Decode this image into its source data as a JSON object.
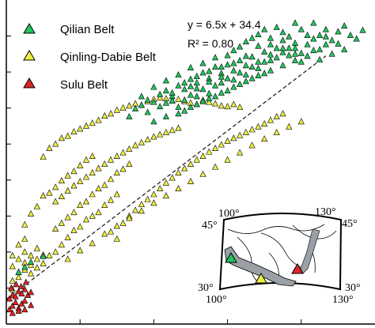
{
  "chart_data": {
    "type": "scatter",
    "title": "",
    "xlabel": "",
    "ylabel": "",
    "xlim": [
      0,
      60
    ],
    "ylim": [
      0,
      450
    ],
    "grid": false,
    "legend_position": "top-left",
    "equation": "y = 6.5x + 34.4",
    "r_squared": "R² = 0.80",
    "fit": {
      "slope": 6.5,
      "intercept": 34.4
    },
    "series": [
      {
        "name": "Qilian Belt",
        "color": "#22c55e",
        "points": [
          [
            2,
            72
          ],
          [
            4,
            86
          ],
          [
            6,
            94
          ],
          [
            3,
            79
          ],
          [
            20,
            288
          ],
          [
            21,
            299
          ],
          [
            22,
            304
          ],
          [
            23,
            311
          ],
          [
            22,
            316
          ],
          [
            24,
            308
          ],
          [
            25,
            319
          ],
          [
            26,
            324
          ],
          [
            24,
            329
          ],
          [
            27,
            316
          ],
          [
            28,
            331
          ],
          [
            26,
            338
          ],
          [
            29,
            326
          ],
          [
            30,
            340
          ],
          [
            28,
            346
          ],
          [
            31,
            335
          ],
          [
            27,
            321
          ],
          [
            32,
            349
          ],
          [
            30,
            356
          ],
          [
            33,
            341
          ],
          [
            29,
            311
          ],
          [
            31,
            327
          ],
          [
            34,
            357
          ],
          [
            32,
            362
          ],
          [
            35,
            348
          ],
          [
            33,
            336
          ],
          [
            36,
            360
          ],
          [
            34,
            370
          ],
          [
            37,
            352
          ],
          [
            35,
            343
          ],
          [
            38,
            366
          ],
          [
            36,
            373
          ],
          [
            39,
            359
          ],
          [
            37,
            380
          ],
          [
            40,
            371
          ],
          [
            38,
            385
          ],
          [
            41,
            364
          ],
          [
            39,
            392
          ],
          [
            42,
            378
          ],
          [
            40,
            397
          ],
          [
            43,
            388
          ],
          [
            41,
            402
          ],
          [
            44,
            383
          ],
          [
            42,
            409
          ],
          [
            45,
            394
          ],
          [
            43,
            374
          ],
          [
            46,
            399
          ],
          [
            44,
            412
          ],
          [
            47,
            390
          ],
          [
            45,
            405
          ],
          [
            48,
            409
          ],
          [
            46,
            383
          ],
          [
            49,
            401
          ],
          [
            47,
            418
          ],
          [
            50,
            396
          ],
          [
            48,
            376
          ],
          [
            51,
            401
          ],
          [
            49,
            388
          ],
          [
            52,
            409
          ],
          [
            50,
            418
          ],
          [
            53,
            394
          ],
          [
            51,
            381
          ],
          [
            54,
            406
          ],
          [
            52,
            399
          ],
          [
            55,
            414
          ],
          [
            56,
            401
          ],
          [
            54,
            389
          ],
          [
            57,
            396
          ],
          [
            58,
            408
          ],
          [
            53,
            375
          ],
          [
            55,
            381
          ],
          [
            26,
            307
          ],
          [
            28,
            301
          ],
          [
            30,
            318
          ],
          [
            32,
            326
          ],
          [
            34,
            331
          ],
          [
            36,
            341
          ],
          [
            38,
            349
          ],
          [
            40,
            357
          ],
          [
            42,
            364
          ],
          [
            44,
            370
          ],
          [
            46,
            373
          ],
          [
            48,
            364
          ],
          [
            50,
            380
          ],
          [
            52,
            388
          ],
          [
            23,
            294
          ],
          [
            25,
            302
          ],
          [
            27,
            310
          ],
          [
            29,
            296
          ],
          [
            31,
            305
          ],
          [
            33,
            313
          ],
          [
            35,
            321
          ],
          [
            37,
            329
          ],
          [
            39,
            337
          ],
          [
            41,
            345
          ],
          [
            43,
            352
          ],
          [
            45,
            359
          ],
          [
            47,
            366
          ],
          [
            49,
            372
          ],
          [
            51,
            367
          ],
          [
            24,
            281
          ],
          [
            26,
            288
          ],
          [
            28,
            292
          ],
          [
            30,
            301
          ],
          [
            32,
            309
          ],
          [
            34,
            316
          ],
          [
            36,
            324
          ],
          [
            38,
            333
          ],
          [
            40,
            341
          ],
          [
            42,
            348
          ],
          [
            30,
            330
          ],
          [
            31,
            344
          ],
          [
            33,
            320
          ],
          [
            35,
            335
          ],
          [
            37,
            362
          ],
          [
            39,
            346
          ],
          [
            41,
            355
          ],
          [
            43,
            366
          ],
          [
            45,
            377
          ],
          [
            47,
            383
          ],
          [
            29,
            335
          ],
          [
            31,
            316
          ],
          [
            33,
            351
          ],
          [
            35,
            357
          ],
          [
            37,
            339
          ],
          [
            39,
            372
          ],
          [
            41,
            386
          ],
          [
            43,
            397
          ],
          [
            45,
            383
          ],
          [
            47,
            375
          ]
        ]
      },
      {
        "name": "Qinling-Dabie Belt",
        "color": "#eeee44",
        "points": [
          [
            1,
            80
          ],
          [
            2,
            90
          ],
          [
            3,
            85
          ],
          [
            1,
            95
          ],
          [
            2,
            72
          ],
          [
            3,
            100
          ],
          [
            4,
            95
          ],
          [
            5,
            105
          ],
          [
            1,
            60
          ],
          [
            2,
            65
          ],
          [
            3,
            75
          ],
          [
            4,
            82
          ],
          [
            5,
            90
          ],
          [
            6,
            96
          ],
          [
            2,
            110
          ],
          [
            3,
            118
          ],
          [
            1,
            48
          ],
          [
            4,
            70
          ],
          [
            5,
            78
          ],
          [
            6,
            84
          ],
          [
            7,
            95
          ],
          [
            8,
            100
          ],
          [
            9,
            110
          ],
          [
            10,
            120
          ],
          [
            11,
            130
          ],
          [
            12,
            135
          ],
          [
            13,
            145
          ],
          [
            14,
            150
          ],
          [
            15,
            155
          ],
          [
            16,
            165
          ],
          [
            17,
            172
          ],
          [
            18,
            180
          ],
          [
            8,
            132
          ],
          [
            9,
            140
          ],
          [
            10,
            148
          ],
          [
            11,
            155
          ],
          [
            12,
            165
          ],
          [
            13,
            170
          ],
          [
            14,
            180
          ],
          [
            15,
            188
          ],
          [
            16,
            193
          ],
          [
            17,
            201
          ],
          [
            18,
            210
          ],
          [
            19,
            215
          ],
          [
            20,
            222
          ],
          [
            3,
            138
          ],
          [
            4,
            153
          ],
          [
            5,
            163
          ],
          [
            6,
            178
          ],
          [
            7,
            182
          ],
          [
            8,
            190
          ],
          [
            9,
            199
          ],
          [
            10,
            206
          ],
          [
            11,
            212
          ],
          [
            12,
            220
          ],
          [
            13,
            228
          ],
          [
            14,
            233
          ],
          [
            6,
            232
          ],
          [
            7,
            244
          ],
          [
            8,
            250
          ],
          [
            9,
            258
          ],
          [
            10,
            261
          ],
          [
            11,
            267
          ],
          [
            12,
            271
          ],
          [
            13,
            275
          ],
          [
            14,
            279
          ],
          [
            15,
            283
          ],
          [
            16,
            289
          ],
          [
            17,
            292
          ],
          [
            18,
            297
          ],
          [
            19,
            300
          ],
          [
            20,
            303
          ],
          [
            21,
            306
          ],
          [
            22,
            304
          ],
          [
            23,
            309
          ],
          [
            24,
            312
          ],
          [
            25,
            314
          ],
          [
            26,
            313
          ],
          [
            27,
            310
          ],
          [
            28,
            312
          ],
          [
            29,
            309
          ],
          [
            30,
            307
          ],
          [
            31,
            305
          ],
          [
            32,
            311
          ],
          [
            33,
            308
          ],
          [
            34,
            306
          ],
          [
            35,
            303
          ],
          [
            36,
            302
          ],
          [
            37,
            305
          ],
          [
            38,
            301
          ],
          [
            8,
            170
          ],
          [
            9,
            177
          ],
          [
            10,
            185
          ],
          [
            11,
            192
          ],
          [
            12,
            198
          ],
          [
            13,
            204
          ],
          [
            14,
            210
          ],
          [
            15,
            216
          ],
          [
            16,
            222
          ],
          [
            17,
            228
          ],
          [
            18,
            233
          ],
          [
            19,
            238
          ],
          [
            20,
            243
          ],
          [
            21,
            248
          ],
          [
            22,
            252
          ],
          [
            23,
            256
          ],
          [
            24,
            260
          ],
          [
            25,
            263
          ],
          [
            26,
            266
          ],
          [
            27,
            269
          ],
          [
            28,
            272
          ],
          [
            18,
            118
          ],
          [
            17,
            128
          ],
          [
            19,
            140
          ],
          [
            20,
            150
          ],
          [
            21,
            158
          ],
          [
            22,
            166
          ],
          [
            23,
            173
          ],
          [
            24,
            180
          ],
          [
            25,
            188
          ],
          [
            26,
            196
          ],
          [
            27,
            203
          ],
          [
            28,
            210
          ],
          [
            29,
            216
          ],
          [
            30,
            222
          ],
          [
            31,
            228
          ],
          [
            32,
            233
          ],
          [
            33,
            239
          ],
          [
            34,
            244
          ],
          [
            35,
            249
          ],
          [
            36,
            254
          ],
          [
            37,
            258
          ],
          [
            38,
            262
          ],
          [
            39,
            266
          ],
          [
            40,
            270
          ],
          [
            41,
            274
          ],
          [
            42,
            278
          ],
          [
            43,
            283
          ],
          [
            44,
            288
          ],
          [
            45,
            292
          ],
          [
            10,
            90
          ],
          [
            12,
            102
          ],
          [
            14,
            112
          ],
          [
            16,
            125
          ],
          [
            18,
            136
          ],
          [
            20,
            147
          ],
          [
            22,
            157
          ],
          [
            24,
            168
          ],
          [
            26,
            178
          ],
          [
            28,
            188
          ],
          [
            30,
            198
          ],
          [
            32,
            208
          ],
          [
            34,
            218
          ],
          [
            36,
            228
          ],
          [
            38,
            238
          ],
          [
            40,
            248
          ],
          [
            42,
            257
          ],
          [
            44,
            266
          ],
          [
            46,
            274
          ],
          [
            48,
            281
          ]
        ]
      },
      {
        "name": "Sulu Belt",
        "color": "#dc2626",
        "points": [
          [
            0.5,
            20
          ],
          [
            1,
            25
          ],
          [
            1.5,
            30
          ],
          [
            2,
            22
          ],
          [
            2.5,
            28
          ],
          [
            3,
            32
          ],
          [
            0.5,
            35
          ],
          [
            1,
            40
          ],
          [
            1.5,
            38
          ],
          [
            2,
            45
          ],
          [
            2.5,
            42
          ],
          [
            3,
            48
          ],
          [
            3.5,
            40
          ],
          [
            4,
            44
          ],
          [
            1,
            15
          ],
          [
            2,
            18
          ],
          [
            3,
            20
          ],
          [
            4,
            26
          ],
          [
            0.8,
            50
          ],
          [
            1.6,
            55
          ],
          [
            2.4,
            52
          ],
          [
            3.2,
            58
          ]
        ]
      }
    ],
    "inset_map": {
      "label_100_top": "100°",
      "label_130_top": "130°",
      "label_45_left": "45°",
      "label_45_right": "45°",
      "label_30_left": "30°",
      "label_30_right": "30°",
      "label_100_bottom": "100°",
      "label_130_bottom": "130°"
    }
  }
}
